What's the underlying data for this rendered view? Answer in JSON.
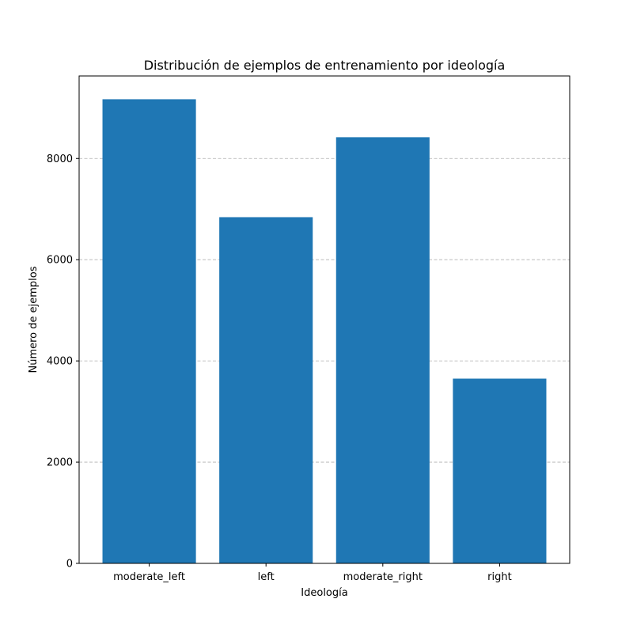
{
  "chart_data": {
    "type": "bar",
    "title": "Distribución de ejemplos de entrenamiento por ideología",
    "xlabel": "Ideología",
    "ylabel": "Número de ejemplos",
    "categories": [
      "moderate_left",
      "left",
      "moderate_right",
      "right"
    ],
    "values": [
      9170,
      6840,
      8420,
      3650
    ],
    "ylim": [
      0,
      9630
    ],
    "yticks": [
      0,
      2000,
      4000,
      6000,
      8000
    ],
    "ytick_labels": [
      "0",
      "2000",
      "4000",
      "6000",
      "8000"
    ],
    "grid": "y-axis dashed",
    "bar_color": "#1f77b4"
  }
}
